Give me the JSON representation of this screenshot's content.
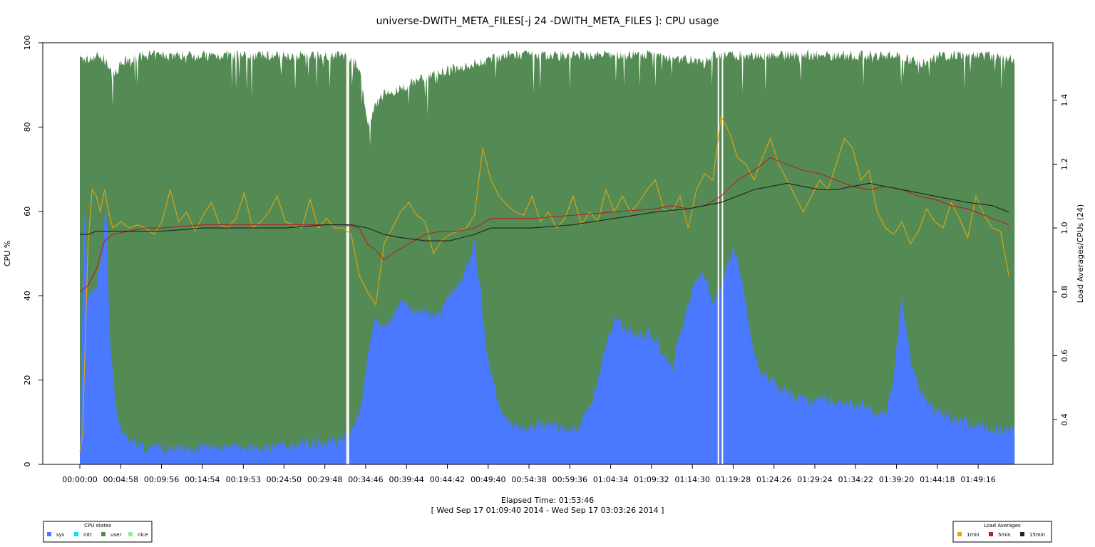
{
  "chart_data": {
    "type": "area",
    "title": "universe-DWITH_META_FILES[-j 24 -DWITH_META_FILES ]: CPU usage",
    "xlabel": "Elapsed Time: 01:53:46",
    "date_range": "[ Wed Sep 17 01:09:40 2014 - Wed Sep 17 03:03:26 2014 ]",
    "ylabel": "CPU %",
    "y2label": "Load Averages/CPUs (24)",
    "ylim": [
      0,
      100
    ],
    "y2lim": [
      0.26,
      1.58
    ],
    "xlim_seconds": [
      0,
      6826
    ],
    "x_ticks": [
      "00:00:00",
      "00:04:58",
      "00:09:56",
      "00:14:54",
      "00:19:53",
      "00:24:50",
      "00:29:48",
      "00:34:46",
      "00:39:44",
      "00:44:42",
      "00:49:40",
      "00:54:38",
      "00:59:36",
      "01:04:34",
      "01:09:32",
      "01:14:30",
      "01:19:28",
      "01:24:26",
      "01:29:24",
      "01:34:22",
      "01:39:20",
      "01:44:18",
      "01:49:16"
    ],
    "y_ticks": [
      "0",
      "20",
      "40",
      "60",
      "80",
      "100"
    ],
    "y2_ticks": [
      "0.4",
      "0.6",
      "0.8",
      "1.0",
      "1.2",
      "1.4"
    ],
    "gaps": [
      "00:32:30",
      "00:32:40",
      "01:17:40",
      "01:18:10"
    ],
    "series": [
      {
        "name": "sys",
        "color": "#4a78ff",
        "x": [
          "00:00:00",
          "00:00:30",
          "00:01:00",
          "00:02:00",
          "00:02:40",
          "00:03:10",
          "00:03:40",
          "00:04:10",
          "00:04:40",
          "00:05:20",
          "00:06:00",
          "00:07:00",
          "00:08:00",
          "00:09:00",
          "00:10:00",
          "00:12:00",
          "00:15:00",
          "00:18:00",
          "00:21:00",
          "00:24:00",
          "00:27:00",
          "00:30:00",
          "00:32:00",
          "00:33:00",
          "00:34:00",
          "00:34:40",
          "00:35:20",
          "00:36:00",
          "00:37:00",
          "00:38:00",
          "00:39:00",
          "00:40:00",
          "00:41:00",
          "00:42:00",
          "00:43:00",
          "00:44:00",
          "00:45:00",
          "00:46:00",
          "00:47:00",
          "00:48:00",
          "00:48:40",
          "00:49:20",
          "00:50:00",
          "00:51:00",
          "00:52:00",
          "00:53:00",
          "00:54:00",
          "00:55:00",
          "00:56:00",
          "00:58:00",
          "01:00:00",
          "01:01:00",
          "01:02:00",
          "01:03:00",
          "01:04:00",
          "01:05:00",
          "01:06:00",
          "01:07:00",
          "01:08:00",
          "01:09:00",
          "01:10:00",
          "01:11:00",
          "01:12:00",
          "01:13:00",
          "01:14:00",
          "01:15:00",
          "01:16:00",
          "01:17:00",
          "01:18:30",
          "01:19:30",
          "01:20:30",
          "01:21:00",
          "01:22:00",
          "01:23:00",
          "01:24:00",
          "01:25:00",
          "01:26:00",
          "01:27:00",
          "01:28:00",
          "01:29:00",
          "01:30:00",
          "01:31:00",
          "01:32:00",
          "01:33:00",
          "01:34:00",
          "01:35:00",
          "01:36:00",
          "01:37:00",
          "01:38:00",
          "01:39:00",
          "01:40:00",
          "01:41:00",
          "01:42:00",
          "01:43:00",
          "01:44:00",
          "01:45:00",
          "01:46:00",
          "01:47:00",
          "01:48:00",
          "01:49:00",
          "01:50:00",
          "01:51:00",
          "01:52:00",
          "01:53:00"
        ],
        "values": [
          2,
          60,
          40,
          42,
          50,
          62,
          30,
          18,
          9,
          7,
          6,
          5,
          4,
          4,
          4,
          4,
          4,
          4,
          4,
          4,
          5,
          5,
          6,
          8,
          12,
          20,
          30,
          34,
          33,
          35,
          38,
          37,
          36,
          36,
          35,
          36,
          40,
          42,
          47,
          52,
          42,
          30,
          22,
          14,
          10,
          9,
          8,
          9,
          10,
          9,
          8,
          10,
          14,
          20,
          28,
          35,
          33,
          32,
          30,
          31,
          30,
          26,
          22,
          31,
          38,
          44,
          45,
          38,
          45,
          52,
          44,
          38,
          26,
          22,
          20,
          18,
          17,
          16,
          16,
          15,
          16,
          15,
          15,
          15,
          14,
          14,
          13,
          12,
          12,
          20,
          40,
          25,
          18,
          15,
          13,
          12,
          11,
          10,
          10,
          9,
          9,
          8,
          8,
          8
        ]
      },
      {
        "name": "intr",
        "color": "#00e5ee",
        "x": [
          "00:00:00",
          "01:53:00"
        ],
        "values": [
          0,
          0
        ]
      },
      {
        "name": "user",
        "color": "#548b54",
        "x": [
          "00:00:00",
          "00:01:00",
          "00:02:00",
          "00:03:00",
          "00:04:00",
          "00:05:00",
          "00:06:00",
          "00:08:00",
          "00:10:00",
          "00:15:00",
          "00:20:00",
          "00:25:00",
          "00:30:00",
          "00:32:00",
          "00:33:00",
          "00:34:00",
          "00:35:00",
          "00:36:00",
          "00:37:00",
          "00:38:00",
          "00:39:00",
          "00:40:00",
          "00:42:00",
          "00:44:00",
          "00:46:00",
          "00:48:00",
          "00:50:00",
          "00:52:00",
          "00:55:00",
          "01:00:00",
          "01:05:00",
          "01:10:00",
          "01:14:00",
          "01:16:00",
          "01:17:00",
          "01:20:00",
          "01:25:00",
          "01:30:00",
          "01:35:00",
          "01:40:00",
          "01:42:00",
          "01:45:00",
          "01:50:00",
          "01:53:00"
        ],
        "values": [
          96,
          96,
          97,
          96,
          92,
          95,
          96,
          97,
          97,
          97,
          97,
          97,
          97,
          97,
          96,
          94,
          80,
          85,
          88,
          88,
          89,
          90,
          92,
          93,
          94,
          95,
          96,
          97,
          97,
          97,
          97,
          97,
          96,
          95,
          97,
          97,
          97,
          97,
          97,
          97,
          95,
          97,
          97,
          96
        ]
      },
      {
        "name": "nice",
        "color": "#90ee90",
        "x": [
          "00:00:00",
          "01:53:00"
        ],
        "values": [
          0,
          0
        ]
      }
    ],
    "load_averages": [
      {
        "name": "1min",
        "color": "#e5a50a",
        "x": [
          "00:00:00",
          "00:00:20",
          "00:01:00",
          "00:01:30",
          "00:02:00",
          "00:02:30",
          "00:03:00",
          "00:03:30",
          "00:04:00",
          "00:05:00",
          "00:06:00",
          "00:07:00",
          "00:08:00",
          "00:09:00",
          "00:10:00",
          "00:11:00",
          "00:12:00",
          "00:13:00",
          "00:14:00",
          "00:15:00",
          "00:16:00",
          "00:17:00",
          "00:18:00",
          "00:19:00",
          "00:20:00",
          "00:21:00",
          "00:22:00",
          "00:23:00",
          "00:24:00",
          "00:25:00",
          "00:26:00",
          "00:27:00",
          "00:28:00",
          "00:29:00",
          "00:30:00",
          "00:31:00",
          "00:32:00",
          "00:33:00",
          "00:34:00",
          "00:35:00",
          "00:36:00",
          "00:37:00",
          "00:38:00",
          "00:39:00",
          "00:40:00",
          "00:41:00",
          "00:42:00",
          "00:43:00",
          "00:44:00",
          "00:45:00",
          "00:46:00",
          "00:47:00",
          "00:48:00",
          "00:49:00",
          "00:50:00",
          "00:51:00",
          "00:52:00",
          "00:53:00",
          "00:54:00",
          "00:55:00",
          "00:56:00",
          "00:57:00",
          "00:58:00",
          "00:59:00",
          "01:00:00",
          "01:01:00",
          "01:02:00",
          "01:03:00",
          "01:04:00",
          "01:05:00",
          "01:06:00",
          "01:07:00",
          "01:08:00",
          "01:09:00",
          "01:10:00",
          "01:11:00",
          "01:12:00",
          "01:13:00",
          "01:14:00",
          "01:15:00",
          "01:16:00",
          "01:17:00",
          "01:18:00",
          "01:19:00",
          "01:20:00",
          "01:21:00",
          "01:22:00",
          "01:23:00",
          "01:24:00",
          "01:25:00",
          "01:26:00",
          "01:27:00",
          "01:28:00",
          "01:29:00",
          "01:30:00",
          "01:31:00",
          "01:32:00",
          "01:33:00",
          "01:34:00",
          "01:35:00",
          "01:36:00",
          "01:37:00",
          "01:38:00",
          "01:39:00",
          "01:40:00",
          "01:41:00",
          "01:42:00",
          "01:43:00",
          "01:44:00",
          "01:45:00",
          "01:46:00",
          "01:47:00",
          "01:48:00",
          "01:49:00",
          "01:50:00",
          "01:51:00",
          "01:52:00",
          "01:53:00"
        ],
        "values": [
          0.3,
          0.35,
          0.95,
          1.12,
          1.1,
          1.05,
          1.12,
          1.05,
          1.0,
          1.02,
          1.0,
          1.01,
          1.0,
          0.98,
          1.02,
          1.12,
          1.02,
          1.05,
          0.99,
          1.04,
          1.08,
          1.01,
          1.0,
          1.03,
          1.11,
          1.0,
          1.02,
          1.05,
          1.1,
          1.02,
          1.01,
          1.0,
          1.09,
          1.0,
          1.03,
          1.0,
          1.0,
          0.98,
          0.85,
          0.8,
          0.76,
          0.95,
          1.0,
          1.05,
          1.08,
          1.04,
          1.02,
          0.92,
          0.96,
          0.98,
          0.99,
          1.0,
          1.04,
          1.25,
          1.15,
          1.1,
          1.07,
          1.05,
          1.04,
          1.1,
          1.02,
          1.05,
          1.0,
          1.03,
          1.1,
          1.01,
          1.05,
          1.02,
          1.12,
          1.05,
          1.1,
          1.05,
          1.08,
          1.12,
          1.15,
          1.06,
          1.05,
          1.1,
          1.0,
          1.12,
          1.17,
          1.15,
          1.35,
          1.3,
          1.22,
          1.2,
          1.15,
          1.22,
          1.28,
          1.2,
          1.15,
          1.1,
          1.05,
          1.1,
          1.15,
          1.12,
          1.2,
          1.28,
          1.25,
          1.15,
          1.18,
          1.05,
          1.0,
          0.98,
          1.02,
          0.95,
          0.99,
          1.06,
          1.02,
          1.0,
          1.08,
          1.03,
          0.97,
          1.1,
          1.04,
          1.0,
          0.99,
          0.85
        ]
      },
      {
        "name": "5min",
        "color": "#b22222",
        "x": [
          "00:00:00",
          "00:01:00",
          "00:02:00",
          "00:03:00",
          "00:04:00",
          "00:06:00",
          "00:08:00",
          "00:10:00",
          "00:15:00",
          "00:20:00",
          "00:25:00",
          "00:30:00",
          "00:32:00",
          "00:34:00",
          "00:35:00",
          "00:36:00",
          "00:37:00",
          "00:38:00",
          "00:40:00",
          "00:42:00",
          "00:44:00",
          "00:46:00",
          "00:48:00",
          "00:50:00",
          "00:52:00",
          "00:55:00",
          "01:00:00",
          "01:05:00",
          "01:10:00",
          "01:12:00",
          "01:14:00",
          "01:16:00",
          "01:18:00",
          "01:20:00",
          "01:22:00",
          "01:24:00",
          "01:26:00",
          "01:28:00",
          "01:30:00",
          "01:32:00",
          "01:34:00",
          "01:36:00",
          "01:38:00",
          "01:40:00",
          "01:42:00",
          "01:44:00",
          "01:46:00",
          "01:48:00",
          "01:50:00",
          "01:53:00"
        ],
        "values": [
          0.8,
          0.82,
          0.87,
          0.96,
          0.98,
          0.99,
          1.0,
          1.0,
          1.01,
          1.01,
          1.01,
          1.01,
          1.01,
          1.0,
          0.95,
          0.93,
          0.9,
          0.92,
          0.95,
          0.98,
          0.99,
          0.99,
          1.0,
          1.03,
          1.03,
          1.03,
          1.04,
          1.05,
          1.06,
          1.07,
          1.06,
          1.07,
          1.1,
          1.15,
          1.18,
          1.22,
          1.2,
          1.18,
          1.17,
          1.15,
          1.13,
          1.12,
          1.13,
          1.12,
          1.1,
          1.09,
          1.07,
          1.06,
          1.04,
          1.01
        ]
      },
      {
        "name": "15min",
        "color": "#222222",
        "x": [
          "00:00:00",
          "00:01:00",
          "00:02:00",
          "00:04:00",
          "00:06:00",
          "00:08:00",
          "00:10:00",
          "00:15:00",
          "00:20:00",
          "00:25:00",
          "00:30:00",
          "00:33:00",
          "00:35:00",
          "00:37:00",
          "00:39:00",
          "00:42:00",
          "00:45:00",
          "00:48:00",
          "00:50:00",
          "00:55:00",
          "01:00:00",
          "01:05:00",
          "01:10:00",
          "01:14:00",
          "01:16:00",
          "01:18:00",
          "01:20:00",
          "01:22:00",
          "01:24:00",
          "01:26:00",
          "01:28:00",
          "01:30:00",
          "01:32:00",
          "01:34:00",
          "01:36:00",
          "01:40:00",
          "01:44:00",
          "01:48:00",
          "01:51:00",
          "01:53:00"
        ],
        "values": [
          0.98,
          0.98,
          0.99,
          0.99,
          0.99,
          0.99,
          0.99,
          1.0,
          1.0,
          1.0,
          1.01,
          1.01,
          1.0,
          0.98,
          0.97,
          0.96,
          0.96,
          0.98,
          1.0,
          1.0,
          1.01,
          1.03,
          1.05,
          1.06,
          1.07,
          1.08,
          1.1,
          1.12,
          1.13,
          1.14,
          1.13,
          1.12,
          1.12,
          1.13,
          1.14,
          1.12,
          1.1,
          1.08,
          1.07,
          1.05
        ]
      }
    ],
    "legend_cpu": {
      "title": "CPU states",
      "placement": "bottom-left",
      "items": [
        {
          "label": "sys",
          "color": "#4a78ff"
        },
        {
          "label": "intr",
          "color": "#00e5ee"
        },
        {
          "label": "user",
          "color": "#548b54"
        },
        {
          "label": "nice",
          "color": "#90ee90"
        }
      ]
    },
    "legend_load": {
      "title": "Load Averages",
      "placement": "bottom-right",
      "items": [
        {
          "label": "1min",
          "color": "#e5a50a"
        },
        {
          "label": "5min",
          "color": "#b22222"
        },
        {
          "label": "15min",
          "color": "#222222"
        }
      ]
    }
  }
}
